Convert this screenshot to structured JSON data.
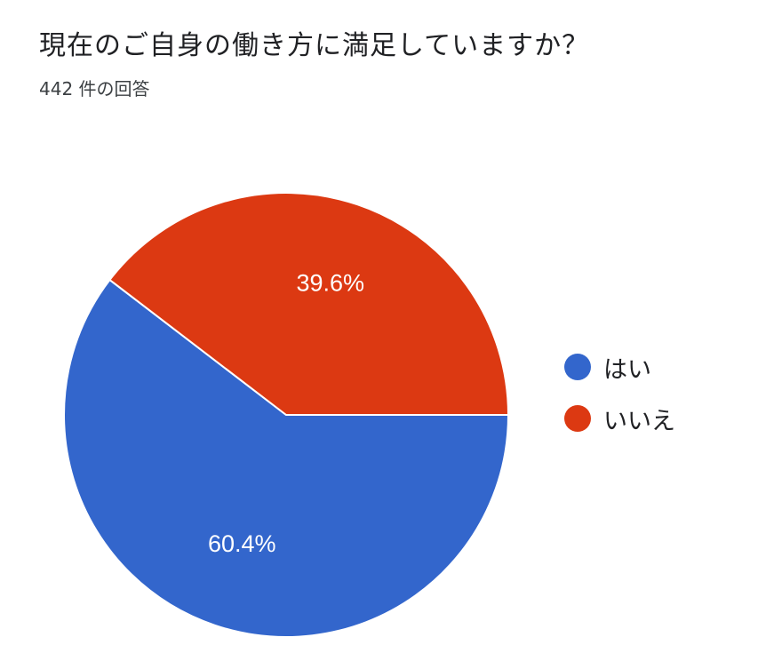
{
  "title": "現在のご自身の働き方に満足していますか？",
  "subtitle": "442 件の回答",
  "chart_data": {
    "type": "pie",
    "title": "現在のご自身の働き方に満足していますか？",
    "subtitle": "442 件の回答",
    "total_responses": 442,
    "categories": [
      "はい",
      "いいえ"
    ],
    "values": [
      60.4,
      39.6
    ],
    "value_labels": [
      "60.4%",
      "39.6%"
    ],
    "colors": [
      "#3366cc",
      "#dc3912"
    ],
    "start_angle_deg": 90,
    "direction": "clockwise-from-3-oclock",
    "legend_position": "right"
  }
}
